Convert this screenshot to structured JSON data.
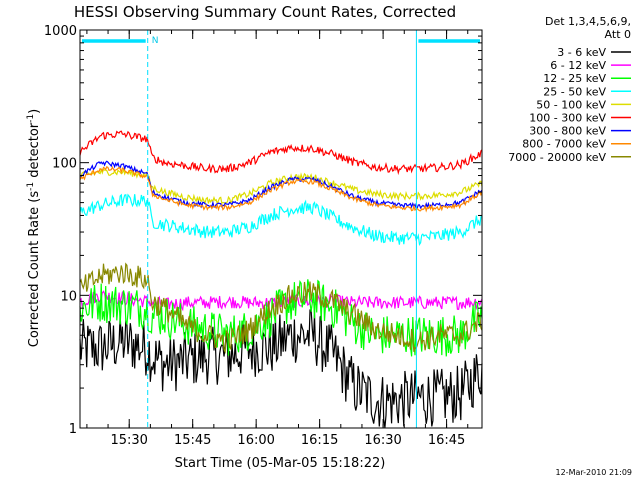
{
  "chart_data": {
    "type": "line",
    "title": "HESSI Observing Summary Count Rates, Corrected",
    "xlabel": "Start Time (05-Mar-05 15:18:22)",
    "ylabel_main": "Corrected Count Rate (s",
    "ylabel_exp1": "-1",
    "ylabel_mid": " detector",
    "ylabel_exp2": "-1",
    "ylabel_end": ")",
    "yscale": "log",
    "ylim": [
      1,
      1000
    ],
    "xlim_minutes": [
      0,
      95
    ],
    "x_ticks": [
      {
        "label": "15:30",
        "minutes": 11.63
      },
      {
        "label": "15:45",
        "minutes": 26.63
      },
      {
        "label": "16:00",
        "minutes": 41.63
      },
      {
        "label": "16:15",
        "minutes": 56.63
      },
      {
        "label": "16:30",
        "minutes": 71.63
      },
      {
        "label": "16:45",
        "minutes": 86.63
      }
    ],
    "y_ticks": [
      {
        "label": "1",
        "value": 1
      },
      {
        "label": "10",
        "value": 10
      },
      {
        "label": "100",
        "value": 100
      },
      {
        "label": "1000",
        "value": 1000
      }
    ],
    "legend_header": [
      "Det 1,3,4,5,6,9,",
      "Att 0"
    ],
    "legend_position": "right",
    "night_flag_label": "N",
    "night_intervals_minutes": [
      [
        0,
        16
      ],
      [
        79.5,
        95
      ]
    ],
    "vertical_markers": [
      {
        "minutes": 0,
        "style": "solid"
      },
      {
        "minutes": 16,
        "style": "dashed"
      },
      {
        "minutes": 79.5,
        "style": "solid"
      },
      {
        "minutes": 95,
        "style": "dashed"
      }
    ],
    "x": [
      0,
      5,
      10,
      16,
      17,
      20,
      25,
      30,
      35,
      40,
      45,
      50,
      55,
      60,
      65,
      70,
      75,
      80,
      85,
      90,
      95
    ],
    "series": [
      {
        "name": "3 - 6 keV",
        "color": "#000000",
        "values": [
          4,
          4,
          4.5,
          4,
          3.5,
          3,
          3.2,
          3.5,
          3.5,
          4,
          4,
          5,
          5,
          3.5,
          2,
          1.6,
          1.6,
          1.7,
          1.7,
          1.8,
          2.8
        ]
      },
      {
        "name": "6 - 12 keV",
        "color": "#ff00ff",
        "values": [
          9,
          10,
          9.5,
          9,
          9,
          8.5,
          8.8,
          8.8,
          9,
          8.8,
          8.8,
          9,
          9,
          9,
          8.8,
          8.8,
          8.8,
          8.8,
          8.8,
          8.8,
          9
        ]
      },
      {
        "name": "12 - 25 keV",
        "color": "#00ff00",
        "values": [
          8,
          9,
          8.5,
          8,
          7,
          7,
          6,
          5.5,
          5,
          5.5,
          7,
          9,
          9.5,
          8,
          6,
          5,
          5,
          5,
          5,
          5,
          7
        ]
      },
      {
        "name": "25 - 50 keV",
        "color": "#00ffff",
        "values": [
          42,
          48,
          52,
          52,
          36,
          34,
          32,
          30,
          30,
          33,
          40,
          45,
          46,
          38,
          32,
          28,
          27,
          27,
          28,
          30,
          38
        ]
      },
      {
        "name": "50 - 100 keV",
        "color": "#dddd00",
        "values": [
          80,
          85,
          85,
          80,
          65,
          60,
          55,
          52,
          52,
          58,
          70,
          78,
          78,
          70,
          62,
          58,
          56,
          56,
          57,
          60,
          70
        ]
      },
      {
        "name": "100 - 300 keV",
        "color": "#ff0000",
        "values": [
          120,
          160,
          165,
          150,
          110,
          100,
          95,
          90,
          90,
          100,
          120,
          130,
          128,
          115,
          100,
          92,
          90,
          90,
          92,
          97,
          118
        ]
      },
      {
        "name": "300 - 800 keV",
        "color": "#0000ff",
        "values": [
          80,
          100,
          95,
          82,
          60,
          55,
          50,
          48,
          48,
          52,
          65,
          75,
          75,
          65,
          55,
          50,
          48,
          47,
          48,
          50,
          62
        ]
      },
      {
        "name": "800 - 7000 keV",
        "color": "#ff8800",
        "values": [
          75,
          90,
          88,
          78,
          58,
          53,
          48,
          46,
          46,
          50,
          62,
          72,
          72,
          62,
          53,
          48,
          46,
          45,
          46,
          48,
          60
        ]
      },
      {
        "name": "7000 - 20000 keV",
        "color": "#888800",
        "values": [
          11,
          14,
          15,
          13,
          9,
          8,
          6,
          5,
          4.5,
          5.5,
          8,
          10,
          10.5,
          9,
          7,
          5.5,
          5,
          4.5,
          5,
          5,
          6.5
        ]
      }
    ]
  },
  "footer_date": "12-Mar-2010 21:09"
}
